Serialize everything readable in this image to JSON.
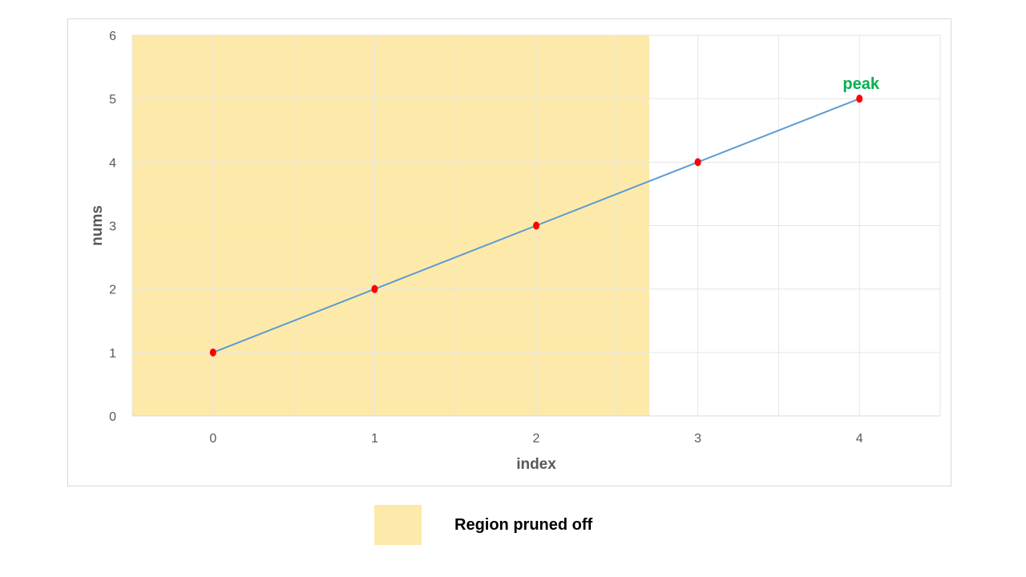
{
  "chart_data": {
    "type": "line",
    "title": "",
    "xlabel": "index",
    "ylabel": "nums",
    "x": [
      0,
      1,
      2,
      3,
      4
    ],
    "x_tick_labels": [
      "0",
      "1",
      "2",
      "3",
      "4"
    ],
    "y_tick_labels": [
      "0",
      "1",
      "2",
      "3",
      "4",
      "5",
      "6"
    ],
    "xlim": [
      -0.5,
      4.5
    ],
    "ylim": [
      0,
      6
    ],
    "grid": true,
    "series": [
      {
        "values": [
          1,
          2,
          3,
          4,
          5
        ]
      }
    ],
    "shaded_region": {
      "x_from": -0.5,
      "x_to": 2.7,
      "y_from": 0,
      "y_to": 6
    },
    "annotations": [
      {
        "text": "peak",
        "x": 4,
        "y": 5,
        "color": "#00b050"
      }
    ],
    "legend": {
      "position": "bottom",
      "items": [
        {
          "label": "Region pruned off",
          "color": "#fde9a9"
        }
      ]
    },
    "colors": {
      "line": "#5b9bd5",
      "marker": "#ff0000",
      "region": "#fde9a9",
      "grid": "#e6e6e6",
      "axis": "#d9d9d9"
    }
  }
}
